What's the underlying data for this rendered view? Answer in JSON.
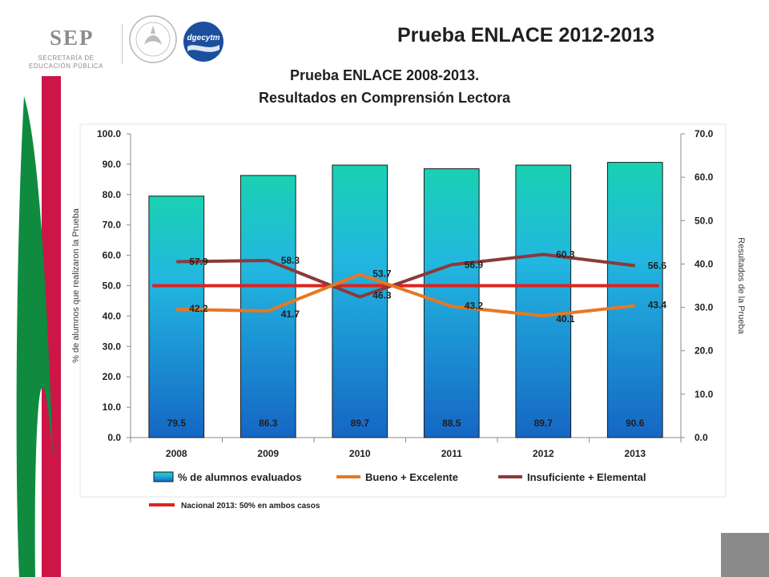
{
  "header": {
    "logo_sep_word": "SEP",
    "logo_sep_line1": "SECRETARÍA DE",
    "logo_sep_line2": "EDUCACIÓN PÚBLICA",
    "logo_dgecytm": "dgecytm",
    "main_title": "Prueba ENLACE 2012-2013"
  },
  "colors": {
    "bar_top": "#19d1b2",
    "bar_bottom": "#1566c4",
    "bueno": "#e87722",
    "insuficiente": "#8b3a3a",
    "nacional": "#e0211c",
    "ribbon_red": "#cd1547",
    "ribbon_green": "#0f8a3f"
  },
  "chart_data": {
    "type": "bar",
    "title": "Prueba ENLACE 2008-2013.",
    "subtitle": "Resultados en Comprensión Lectora",
    "categories": [
      "2008",
      "2009",
      "2010",
      "2011",
      "2012",
      "2013"
    ],
    "ylabel": "% de alumnos que realizaron la Prueba",
    "y2label": "Resultados de la Prueba",
    "ylim": [
      0,
      100
    ],
    "y2lim": [
      0,
      70
    ],
    "yticks": [
      "0.0",
      "10.0",
      "20.0",
      "30.0",
      "40.0",
      "50.0",
      "60.0",
      "70.0",
      "80.0",
      "90.0",
      "100.0"
    ],
    "y2ticks": [
      "0.0",
      "10.0",
      "20.0",
      "30.0",
      "40.0",
      "50.0",
      "60.0",
      "70.0"
    ],
    "series": [
      {
        "name": "% de alumnos evaluados",
        "kind": "bar",
        "axis": "left",
        "values": [
          79.5,
          86.3,
          89.7,
          88.5,
          89.7,
          90.6
        ],
        "labels": [
          "79.5",
          "86.3",
          "89.7",
          "88.5",
          "89.7",
          "90.6"
        ]
      },
      {
        "name": "Bueno + Excelente",
        "kind": "line",
        "axis": "left",
        "values": [
          42.2,
          41.7,
          53.7,
          43.2,
          40.1,
          43.4
        ],
        "labels": [
          "42.2",
          "41.7",
          "53.7",
          "43.2",
          "40.1",
          "43.4"
        ]
      },
      {
        "name": "Insuficiente + Elemental",
        "kind": "line",
        "axis": "left",
        "values": [
          57.9,
          58.3,
          46.3,
          56.9,
          60.3,
          56.6
        ],
        "labels": [
          "57.9",
          "58.3",
          "46.3",
          "56.9",
          "60.3",
          "56.6"
        ]
      },
      {
        "name": "Nacional 2013: 50% en ambos casos",
        "kind": "line",
        "axis": "left",
        "values": [
          50,
          50,
          50,
          50,
          50,
          50
        ]
      }
    ],
    "grid": false,
    "legend": "bottom"
  }
}
